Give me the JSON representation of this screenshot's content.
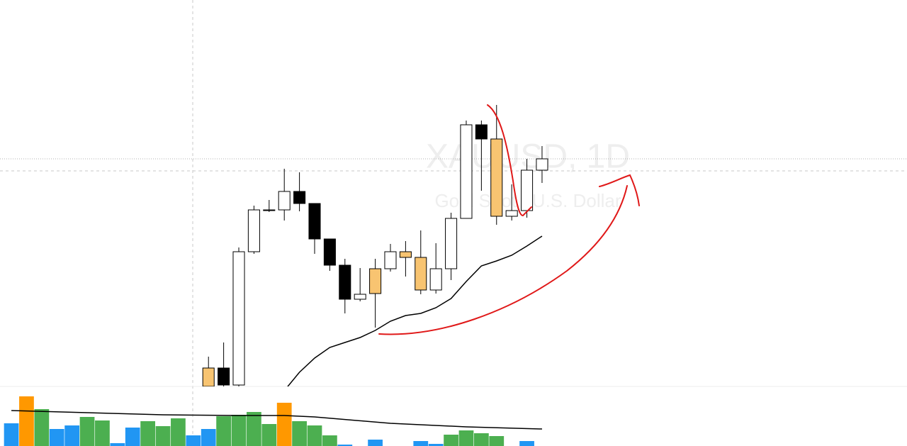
{
  "chart_data": [
    {
      "type": "candlestick",
      "title": "XAUUSD, 1D",
      "subtitle": "Gold Spot / U.S. Dollar",
      "xlim": [
        -0.75,
        59.07
      ],
      "ylim": [
        0,
        545
      ],
      "x": [
        13,
        14,
        15,
        16,
        17,
        18,
        19,
        20,
        21,
        22,
        23,
        24,
        25,
        26,
        27,
        28,
        29,
        30,
        31,
        32,
        33,
        34,
        35
      ],
      "open": [
        26,
        26,
        2,
        190,
        248,
        249,
        275,
        258,
        208,
        171,
        123,
        166,
        166,
        190,
        182,
        136,
        166,
        237,
        369,
        349,
        240,
        248,
        305
      ],
      "high": [
        42,
        62,
        196,
        255,
        263,
        307,
        302,
        258,
        208,
        180,
        167,
        180,
        201,
        205,
        220,
        202,
        245,
        375,
        375,
        397,
        285,
        321,
        339
      ],
      "low": [
        0,
        0,
        0,
        187,
        246,
        234,
        247,
        187,
        163,
        103,
        120,
        83,
        162,
        155,
        130,
        131,
        150,
        237,
        276,
        228,
        234,
        238,
        287
      ],
      "close": [
        0,
        2,
        190,
        249,
        249,
        275,
        258,
        208,
        171,
        123,
        130,
        131,
        190,
        182,
        136,
        166,
        237,
        369,
        349,
        240,
        248,
        305,
        321
      ],
      "colors": [
        "#f8c471",
        "#000000",
        "#ffffff",
        "#ffffff",
        "#ffffff",
        "#ffffff",
        "#000000",
        "#000000",
        "#000000",
        "#000000",
        "#ffffff",
        "#f8c471",
        "#ffffff",
        "#f8c471",
        "#f8c471",
        "#ffffff",
        "#ffffff",
        "#ffffff",
        "#000000",
        "#f8c471",
        "#ffffff",
        "#ffffff",
        "#ffffff"
      ],
      "lines": [
        {
          "color": "#000000",
          "x": [
            18,
            19,
            20,
            21,
            22,
            23,
            24,
            25,
            26,
            27,
            28,
            29,
            30,
            31,
            32,
            33,
            34,
            35
          ],
          "values": [
            -6,
            20,
            40,
            55,
            62,
            69,
            79,
            92,
            100,
            103,
            111,
            124,
            148,
            170,
            177,
            185,
            198,
            212
          ]
        }
      ]
    },
    {
      "type": "bar",
      "xlim": [
        -0.75,
        59.07
      ],
      "ylim": [
        0,
        84
      ],
      "x": [
        0,
        1,
        2,
        3,
        4,
        5,
        6,
        7,
        8,
        9,
        10,
        11,
        12,
        13,
        14,
        15,
        16,
        17,
        18,
        19,
        20,
        21,
        22,
        23,
        24,
        25,
        26,
        27,
        28,
        29,
        30,
        31,
        32,
        33,
        34,
        35
      ],
      "values": [
        32,
        70,
        52,
        24,
        29,
        41,
        36,
        4,
        26,
        35,
        28,
        39,
        15,
        24,
        42,
        44,
        48,
        31,
        61,
        35,
        29,
        15,
        2,
        null,
        9,
        null,
        null,
        7,
        3,
        16,
        22,
        18,
        14,
        null,
        7,
        null
      ],
      "colors": [
        "#2196f3",
        "#ff9800",
        "#4caf50",
        "#2196f3",
        "#2196f3",
        "#4caf50",
        "#4caf50",
        "#2196f3",
        "#2196f3",
        "#4caf50",
        "#4caf50",
        "#4caf50",
        "#2196f3",
        "#2196f3",
        "#4caf50",
        "#4caf50",
        "#4caf50",
        "#4caf50",
        "#ff9800",
        "#4caf50",
        "#4caf50",
        "#4caf50",
        "#2196f3",
        null,
        "#2196f3",
        null,
        null,
        "#2196f3",
        "#2196f3",
        "#4caf50",
        "#4caf50",
        "#4caf50",
        "#4caf50",
        null,
        "#2196f3",
        null
      ],
      "lines": [
        {
          "color": "#000000",
          "x": [
            0,
            5,
            10,
            15,
            18,
            20,
            25,
            30,
            35
          ],
          "values": [
            50,
            47,
            44,
            43,
            43,
            41,
            32,
            27,
            24
          ]
        }
      ]
    }
  ]
}
